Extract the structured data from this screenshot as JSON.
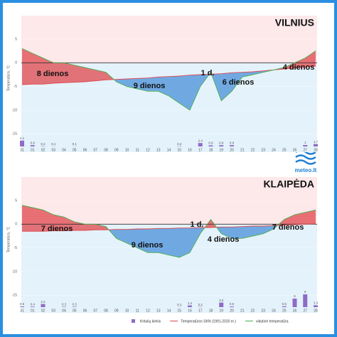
{
  "chart_data": [
    {
      "type": "line",
      "title": "VILNIUS",
      "ylabel": "Temperatūra, °C",
      "categories": [
        "31",
        "01",
        "02",
        "03",
        "04",
        "05",
        "06",
        "07",
        "08",
        "09",
        "10",
        "11",
        "12",
        "13",
        "14",
        "15",
        "16",
        "17",
        "18",
        "19",
        "20",
        "21",
        "22",
        "23",
        "24",
        "25",
        "26",
        "27",
        "28"
      ],
      "temperature": [
        3,
        2,
        1,
        0,
        0,
        -0.5,
        -1,
        -1.5,
        -2,
        -4,
        -5,
        -5.5,
        -6,
        -6,
        -7,
        -8.5,
        -10,
        -5,
        -2,
        -8,
        -6,
        -3,
        -2.5,
        -2,
        -1.5,
        -1,
        0,
        1,
        2.5
      ],
      "normal": [
        -4.6,
        -4.5,
        -4.5,
        -4.3,
        -4.2,
        -4.1,
        -4,
        -3.8,
        -3.6,
        -3.5,
        -3.4,
        -3.3,
        -3.2,
        -3,
        -2.9,
        -2.8,
        -2.6,
        -2.5,
        -2.4,
        -2.3,
        -2.1,
        -2,
        -1.9,
        -1.7,
        -1.5,
        -1.3,
        -1.1,
        -0.9,
        -0.7
      ],
      "precipitation": [
        4.1,
        0.9,
        0.2,
        0.1,
        null,
        0.1,
        null,
        null,
        null,
        null,
        null,
        null,
        null,
        null,
        null,
        0.2,
        null,
        2.4,
        0.8,
        0.9,
        0.9,
        null,
        null,
        null,
        null,
        null,
        null,
        1,
        1.7
      ],
      "annotations": [
        "8 dienos",
        "9 dienos",
        "1 d.",
        "6 dienos",
        "4 dienos"
      ],
      "ylim": [
        -16,
        9.5
      ],
      "yticks": [
        5,
        0,
        -5,
        -10,
        -15
      ]
    },
    {
      "type": "line",
      "title": "KLAIPĖDA",
      "ylabel": "Temperatūra, °C",
      "categories": [
        "31",
        "01",
        "02",
        "03",
        "04",
        "05",
        "06",
        "07",
        "08",
        "09",
        "10",
        "11",
        "12",
        "13",
        "14",
        "15",
        "16",
        "17",
        "18",
        "19",
        "20",
        "21",
        "22",
        "23",
        "24",
        "25",
        "26",
        "27",
        "28"
      ],
      "temperature": [
        4,
        3.5,
        3,
        2,
        1.5,
        0.5,
        0,
        0,
        -0.5,
        -3,
        -4,
        -5,
        -6,
        -6,
        -6.5,
        -7,
        -6,
        -2,
        1,
        -2,
        -3,
        -3,
        -2.5,
        -2,
        -1,
        1,
        2,
        2.5,
        3
      ],
      "normal": [
        -1.5,
        -1.5,
        -1.5,
        -1.4,
        -1.4,
        -1.3,
        -1.3,
        -1.2,
        -1.2,
        -1.1,
        -1.1,
        -1,
        -1,
        -0.9,
        -0.9,
        -0.8,
        -0.8,
        -0.7,
        -0.7,
        -0.6,
        -0.6,
        -0.5,
        -0.4,
        -0.4,
        -0.3,
        -0.2,
        -0.1,
        0,
        0.1
      ],
      "precipitation": [
        0.5,
        0.4,
        2.2,
        null,
        0.3,
        0.3,
        null,
        null,
        null,
        null,
        null,
        null,
        null,
        null,
        null,
        0.1,
        1.2,
        0.2,
        null,
        3.2,
        0.5,
        null,
        null,
        null,
        null,
        0.6,
        6,
        9,
        1.3
      ],
      "annotations": [
        "7 dienos",
        "9 dienos",
        "1 d.",
        "4 dienos",
        "7 dienos"
      ],
      "ylim": [
        -16,
        9.5
      ],
      "yticks": [
        5,
        0,
        -5,
        -10,
        -15
      ]
    }
  ],
  "legend": [
    {
      "name": "Kritulių kiekis",
      "color": "#8e6bc7"
    },
    {
      "name": "Temperatūros SKN (1991-2020 m.)",
      "color": "#e0474c"
    },
    {
      "name": "vidutinė temperatūra",
      "color": "#4caf50"
    }
  ],
  "logo": "meteo.lt"
}
